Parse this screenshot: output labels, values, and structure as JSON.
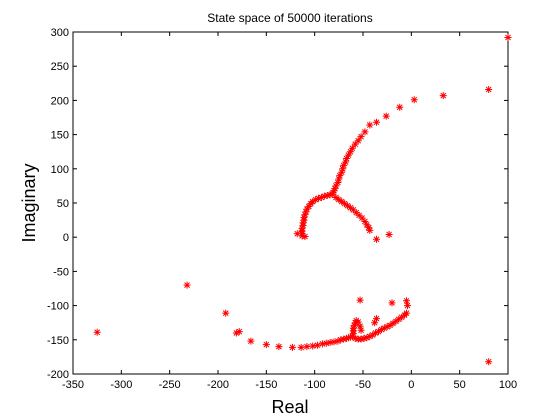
{
  "chart_data": {
    "type": "scatter",
    "title": "State space of 50000 iterations",
    "xlabel": "Real",
    "ylabel": "Imaginary",
    "xlim": [
      -350,
      100
    ],
    "ylim": [
      -200,
      300
    ],
    "xticks": [
      -350,
      -300,
      -250,
      -200,
      -150,
      -100,
      -50,
      0,
      50,
      100
    ],
    "yticks": [
      -200,
      -150,
      -100,
      -50,
      0,
      50,
      100,
      150,
      200,
      250,
      300
    ],
    "grid": false,
    "legend": "none",
    "marker": "*",
    "series": [
      {
        "color": "#ff0000",
        "points": [
          [
            100,
            292
          ],
          [
            80,
            216
          ],
          [
            33,
            207
          ],
          [
            3,
            201
          ],
          [
            -12,
            190
          ],
          [
            -26,
            177
          ],
          [
            -36,
            168
          ],
          [
            -43,
            164
          ],
          [
            -48,
            154
          ],
          [
            -52,
            147
          ],
          [
            -55,
            141
          ],
          [
            -58,
            136
          ],
          [
            -61,
            130
          ],
          [
            -63,
            125
          ],
          [
            -65,
            120
          ],
          [
            -67,
            115
          ],
          [
            -68,
            110
          ],
          [
            -70,
            105
          ],
          [
            -71,
            100
          ],
          [
            -72,
            95
          ],
          [
            -74,
            90
          ],
          [
            -75,
            85
          ],
          [
            -76,
            80
          ],
          [
            -78,
            75
          ],
          [
            -79,
            71
          ],
          [
            -80,
            68
          ],
          [
            -81,
            65
          ],
          [
            -82,
            63
          ],
          [
            -84,
            62
          ],
          [
            -87,
            61
          ],
          [
            -90,
            60
          ],
          [
            -93,
            58
          ],
          [
            -96,
            57
          ],
          [
            -99,
            55
          ],
          [
            -102,
            52
          ],
          [
            -104,
            49
          ],
          [
            -106,
            45
          ],
          [
            -108,
            41
          ],
          [
            -109,
            37
          ],
          [
            -110,
            33
          ],
          [
            -111,
            29
          ],
          [
            -111,
            25
          ],
          [
            -112,
            21
          ],
          [
            -112,
            17
          ],
          [
            -113,
            13
          ],
          [
            -113,
            9
          ],
          [
            -113,
            5
          ],
          [
            -118,
            5
          ],
          [
            -113,
            2
          ],
          [
            -110,
            1
          ],
          [
            -78,
            58
          ],
          [
            -75,
            55
          ],
          [
            -72,
            52
          ],
          [
            -69,
            49
          ],
          [
            -66,
            46
          ],
          [
            -63,
            43
          ],
          [
            -60,
            40
          ],
          [
            -57,
            36
          ],
          [
            -54,
            32
          ],
          [
            -51,
            28
          ],
          [
            -48,
            23
          ],
          [
            -46,
            18
          ],
          [
            -44,
            14
          ],
          [
            -43,
            10
          ],
          [
            -36,
            -3
          ],
          [
            -23,
            4
          ],
          [
            -232,
            -70
          ],
          [
            -192,
            -111
          ],
          [
            -181,
            -140
          ],
          [
            -178,
            -138
          ],
          [
            -166,
            -152
          ],
          [
            -150,
            -157
          ],
          [
            -137,
            -160
          ],
          [
            -123,
            -161
          ],
          [
            -114,
            -161
          ],
          [
            -108,
            -160
          ],
          [
            -102,
            -159
          ],
          [
            -97,
            -158
          ],
          [
            -92,
            -156
          ],
          [
            -88,
            -155
          ],
          [
            -84,
            -154
          ],
          [
            -80,
            -153
          ],
          [
            -76,
            -152
          ],
          [
            -73,
            -150
          ],
          [
            -70,
            -149
          ],
          [
            -67,
            -148
          ],
          [
            -65,
            -147
          ],
          [
            -63,
            -146
          ],
          [
            -61,
            -145
          ],
          [
            -60,
            -141
          ],
          [
            -60,
            -137
          ],
          [
            -60,
            -133
          ],
          [
            -59,
            -129
          ],
          [
            -58,
            -125
          ],
          [
            -57,
            -122
          ],
          [
            -55,
            -124
          ],
          [
            -53,
            -130
          ],
          [
            -52,
            -136
          ],
          [
            -58,
            -148
          ],
          [
            -55,
            -149
          ],
          [
            -52,
            -149
          ],
          [
            -49,
            -148
          ],
          [
            -46,
            -147
          ],
          [
            -43,
            -145
          ],
          [
            -40,
            -143
          ],
          [
            -37,
            -140
          ],
          [
            -34,
            -138
          ],
          [
            -31,
            -135
          ],
          [
            -28,
            -133
          ],
          [
            -25,
            -131
          ],
          [
            -22,
            -129
          ],
          [
            -19,
            -126
          ],
          [
            -16,
            -123
          ],
          [
            -13,
            -120
          ],
          [
            -10,
            -117
          ],
          [
            -7,
            -114
          ],
          [
            -5,
            -111
          ],
          [
            -53,
            -92
          ],
          [
            -36,
            -119
          ],
          [
            -38,
            -125
          ],
          [
            -20,
            -96
          ],
          [
            -5,
            -93
          ],
          [
            -4,
            -100
          ],
          [
            -325,
            -139
          ],
          [
            80,
            -182
          ]
        ]
      }
    ]
  }
}
